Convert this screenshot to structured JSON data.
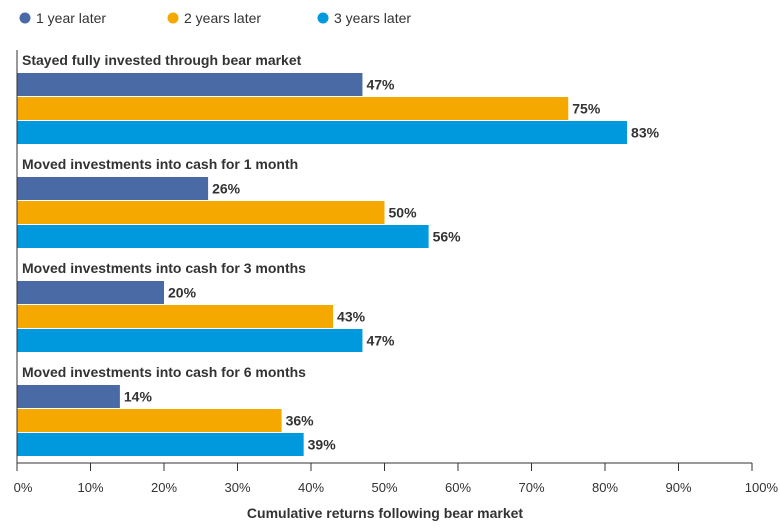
{
  "chart_data": {
    "type": "bar",
    "orientation": "horizontal",
    "xlabel": "Cumulative returns following bear market",
    "xlim": [
      0,
      100
    ],
    "xticks": [
      "0%",
      "10%",
      "20%",
      "30%",
      "40%",
      "50%",
      "60%",
      "70%",
      "80%",
      "90%",
      "100%"
    ],
    "legend_position": "top-left",
    "grid": false,
    "categories": [
      "Stayed fully invested through bear market",
      "Moved investments into cash for 1 month",
      "Moved investments into cash for 3 months",
      "Moved investments into cash for 6 months"
    ],
    "series": [
      {
        "name": "1 year later",
        "color": "#4a6aa5",
        "values": [
          47,
          26,
          20,
          14
        ]
      },
      {
        "name": "2 years later",
        "color": "#f5a800",
        "values": [
          75,
          50,
          43,
          36
        ]
      },
      {
        "name": "3 years later",
        "color": "#0099dd",
        "values": [
          83,
          56,
          47,
          39
        ]
      }
    ],
    "value_suffix": "%"
  }
}
